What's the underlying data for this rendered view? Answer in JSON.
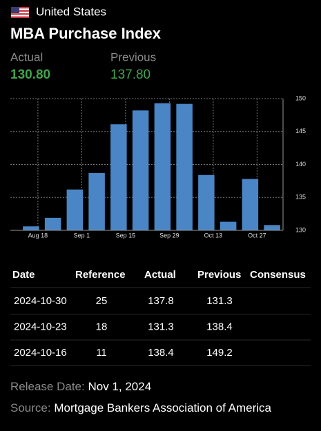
{
  "header": {
    "country": "United States",
    "title": "MBA Purchase Index"
  },
  "summary": {
    "actual_label": "Actual",
    "actual": "130.80",
    "previous_label": "Previous",
    "previous": "137.80"
  },
  "chart_data": {
    "type": "bar",
    "categories": [
      "Aug 18",
      null,
      "Sep 1",
      null,
      "Sep 15",
      null,
      "Sep 29",
      null,
      "Oct 13",
      null,
      "Oct 27",
      null
    ],
    "values": [
      130.6,
      131.9,
      136.2,
      138.7,
      146.1,
      148.2,
      149.3,
      149.2,
      138.4,
      131.3,
      137.8,
      130.8
    ],
    "color": "#4a86c5",
    "ylim": [
      130,
      150
    ],
    "yticks": [
      130,
      135,
      140,
      145,
      150
    ],
    "grid": true
  },
  "table": {
    "headers": [
      "Date",
      "Reference",
      "Actual",
      "Previous",
      "Consensus"
    ],
    "rows": [
      [
        "2024-10-30",
        "25",
        "137.8",
        "131.3"
      ],
      [
        "2024-10-23",
        "18",
        "131.3",
        "138.4"
      ],
      [
        "2024-10-16",
        "11",
        "138.4",
        "149.2"
      ]
    ]
  },
  "footer": {
    "release_label": "Release Date:",
    "release_date": "Nov 1, 2024",
    "source_label": "Source:",
    "source": "Mortgage Bankers Association of America"
  }
}
